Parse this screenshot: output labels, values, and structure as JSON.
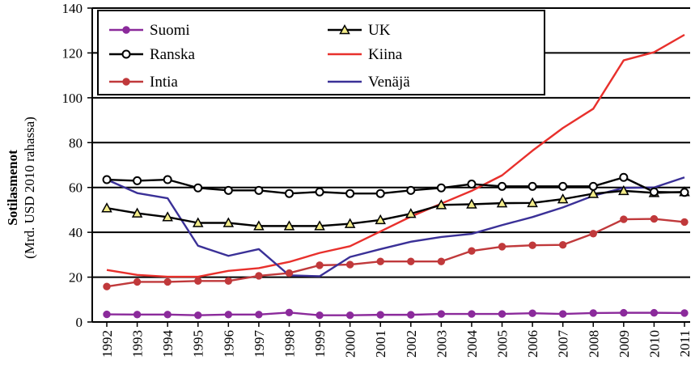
{
  "chart_data": {
    "type": "line",
    "title": "",
    "xlabel": "",
    "ylabel": "Sotilasmenot",
    "ylabel_sub": "(Mrd. USD 2010 rahassa)",
    "ylim": [
      0,
      140
    ],
    "yticks": [
      0,
      20,
      40,
      60,
      80,
      100,
      120,
      140
    ],
    "grid": "horizontal",
    "legend_position": "top-left",
    "x": [
      "1992",
      "1993",
      "1994",
      "1995",
      "1996",
      "1997",
      "1998",
      "1999",
      "2000",
      "2001",
      "2002",
      "2003",
      "2004",
      "2005",
      "2006",
      "2007",
      "2008",
      "2009",
      "2010",
      "2011"
    ],
    "series": [
      {
        "name": "Suomi",
        "color": "#8B2A9B",
        "marker": "dot-purple",
        "values": [
          3.4,
          3.3,
          3.3,
          3.0,
          3.3,
          3.3,
          4.2,
          3.0,
          3.0,
          3.2,
          3.2,
          3.6,
          3.6,
          3.6,
          3.9,
          3.6,
          4.0,
          4.1,
          4.1,
          4.0
        ]
      },
      {
        "name": "Ranska",
        "color": "#000000",
        "marker": "open-circle",
        "values": [
          63.5,
          63.0,
          63.5,
          59.8,
          58.7,
          58.7,
          57.3,
          58.0,
          57.3,
          57.3,
          58.7,
          59.8,
          61.5,
          60.5,
          60.5,
          60.5,
          60.5,
          64.5,
          58.0,
          57.8
        ]
      },
      {
        "name": "Intia",
        "color": "#C0393B",
        "marker": "dot-red",
        "values": [
          15.8,
          17.9,
          17.9,
          18.3,
          18.3,
          20.6,
          21.8,
          25.3,
          25.6,
          27.0,
          27.0,
          27.0,
          31.7,
          33.6,
          34.2,
          34.4,
          39.4,
          45.8,
          46.0,
          44.6
        ]
      },
      {
        "name": "UK",
        "color": "#000000",
        "marker": "triangle-yellow",
        "values": [
          50.8,
          48.5,
          46.8,
          44.2,
          44.2,
          42.8,
          42.8,
          42.8,
          43.8,
          45.5,
          48.3,
          52.2,
          52.5,
          53.0,
          53.1,
          54.8,
          57.2,
          58.5,
          57.6,
          58.0
        ]
      },
      {
        "name": "Kiina",
        "color": "#E8302C",
        "marker": "none",
        "values": [
          23.2,
          21.0,
          20.2,
          20.2,
          22.8,
          24.0,
          26.8,
          30.8,
          33.8,
          40.4,
          47.0,
          52.8,
          58.5,
          65.4,
          76.4,
          86.5,
          95.1,
          116.7,
          120.3,
          128.1
        ]
      },
      {
        "name": "Venäjä",
        "color": "#3A3097",
        "marker": "none",
        "values": [
          63.5,
          57.5,
          55.2,
          34.0,
          29.5,
          32.5,
          20.8,
          20.4,
          29.0,
          32.5,
          35.8,
          37.9,
          39.3,
          43.2,
          46.8,
          51.1,
          56.3,
          59.8,
          60.0,
          64.5
        ]
      }
    ]
  }
}
